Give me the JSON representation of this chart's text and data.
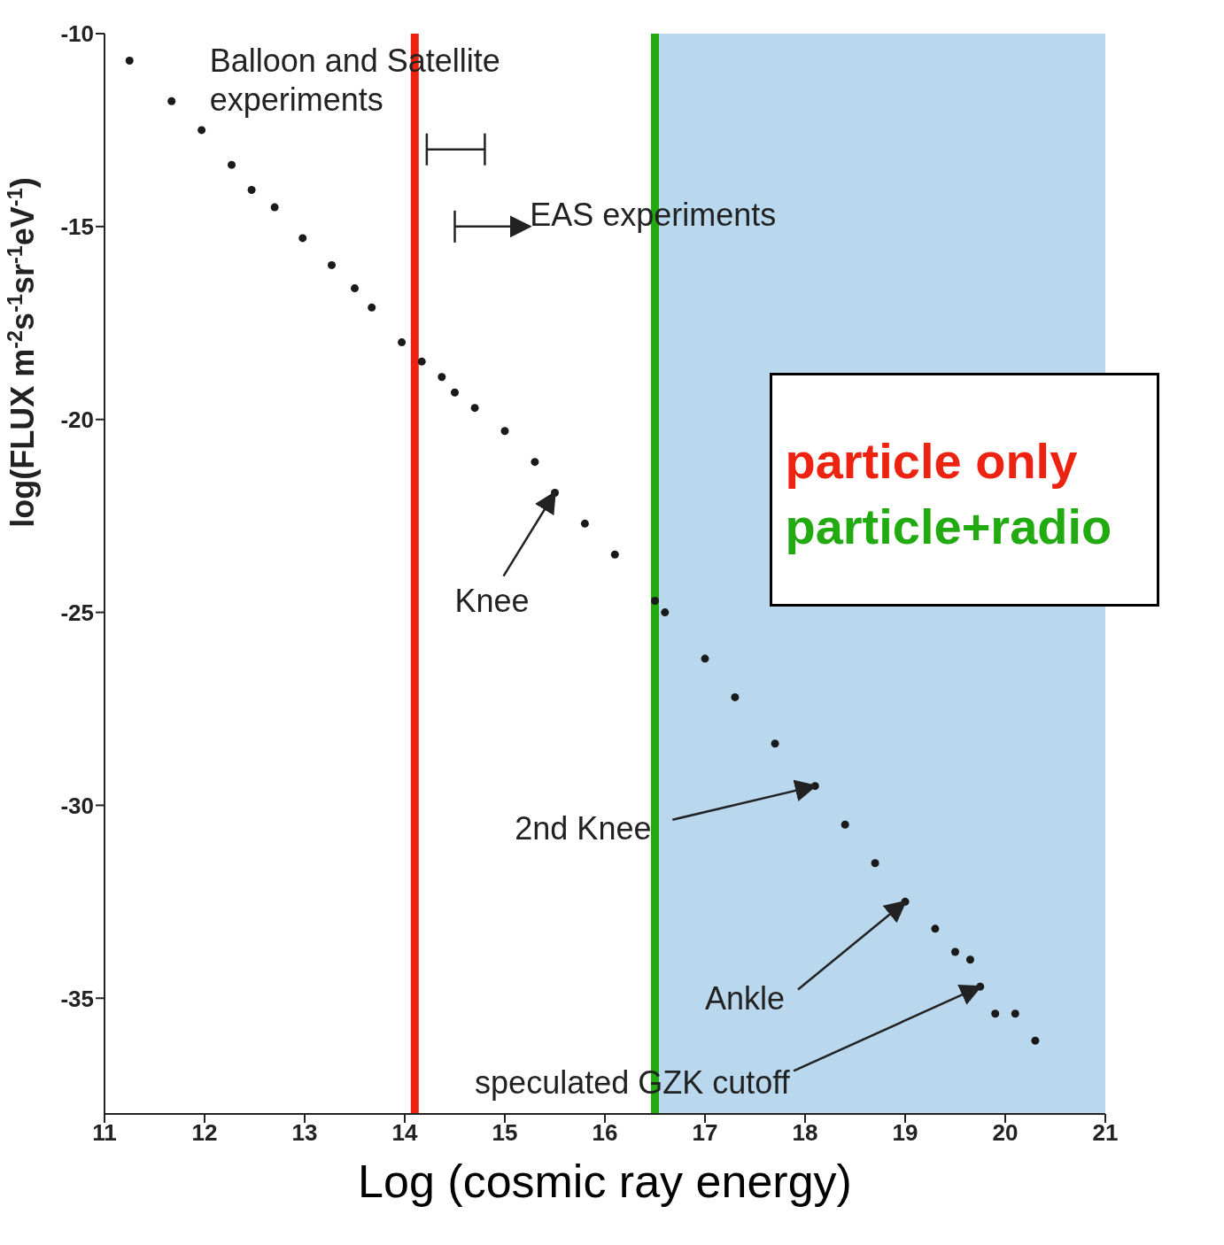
{
  "chart_data": {
    "type": "scatter",
    "xlabel": "Log (cosmic ray energy)",
    "ylabel": "log(FLUX  m$^{-2}$s$^{-1}$sr$^{-1}$eV$^{-1}$)",
    "x": [
      11.25,
      11.67,
      11.97,
      12.27,
      12.47,
      12.7,
      12.98,
      13.27,
      13.5,
      13.67,
      13.97,
      14.17,
      14.37,
      14.5,
      14.7,
      15.0,
      15.3,
      15.5,
      15.8,
      16.1,
      16.5,
      16.6,
      17.0,
      17.3,
      17.7,
      18.1,
      18.4,
      18.7,
      19.0,
      19.3,
      19.5,
      19.65,
      19.75,
      19.9,
      20.1,
      20.3
    ],
    "series": [
      {
        "color": "#1a1a1a",
        "values": [
          -10.7,
          -11.75,
          -12.5,
          -13.4,
          -14.05,
          -14.5,
          -15.3,
          -16.0,
          -16.6,
          -17.1,
          -18.0,
          -18.5,
          -18.9,
          -19.3,
          -19.7,
          -20.3,
          -21.1,
          -21.9,
          -22.7,
          -23.5,
          -24.7,
          -25.0,
          -26.2,
          -27.2,
          -28.4,
          -29.5,
          -30.5,
          -31.5,
          -32.5,
          -33.2,
          -33.8,
          -34.0,
          -34.7,
          -35.4,
          -35.4,
          -36.1
        ]
      }
    ],
    "xlim": [
      11,
      21
    ],
    "xticks": [
      11,
      12,
      13,
      14,
      15,
      16,
      17,
      18,
      19,
      20,
      21
    ],
    "ylim": [
      -38,
      -10
    ],
    "yticks": [
      -35,
      -30,
      -25,
      -20,
      -15,
      -10
    ],
    "marker": "circle",
    "grid": false,
    "ref_lines": [
      {
        "axis": "x",
        "value": 14.1,
        "label": "particle only",
        "color": "#ee2211"
      },
      {
        "axis": "x",
        "value": 16.5,
        "label": "particle+radio",
        "color": "#22aa11"
      }
    ],
    "bands": [
      {
        "axis": "x",
        "from": 16.5,
        "to": 21,
        "color": "#7fb8de"
      }
    ],
    "annotations": [
      "Balloon and Satellite experiments",
      "EAS experiments",
      {
        "text": "Knee",
        "x": 15.5,
        "y": -21.9
      },
      {
        "text": "2nd Knee",
        "x": 18.1,
        "y": -29.5
      },
      {
        "text": "Ankle",
        "x": 19.0,
        "y": -32.5
      },
      {
        "text": "speculated GZK cutoff",
        "x": 19.75,
        "y": -34.7
      }
    ]
  }
}
